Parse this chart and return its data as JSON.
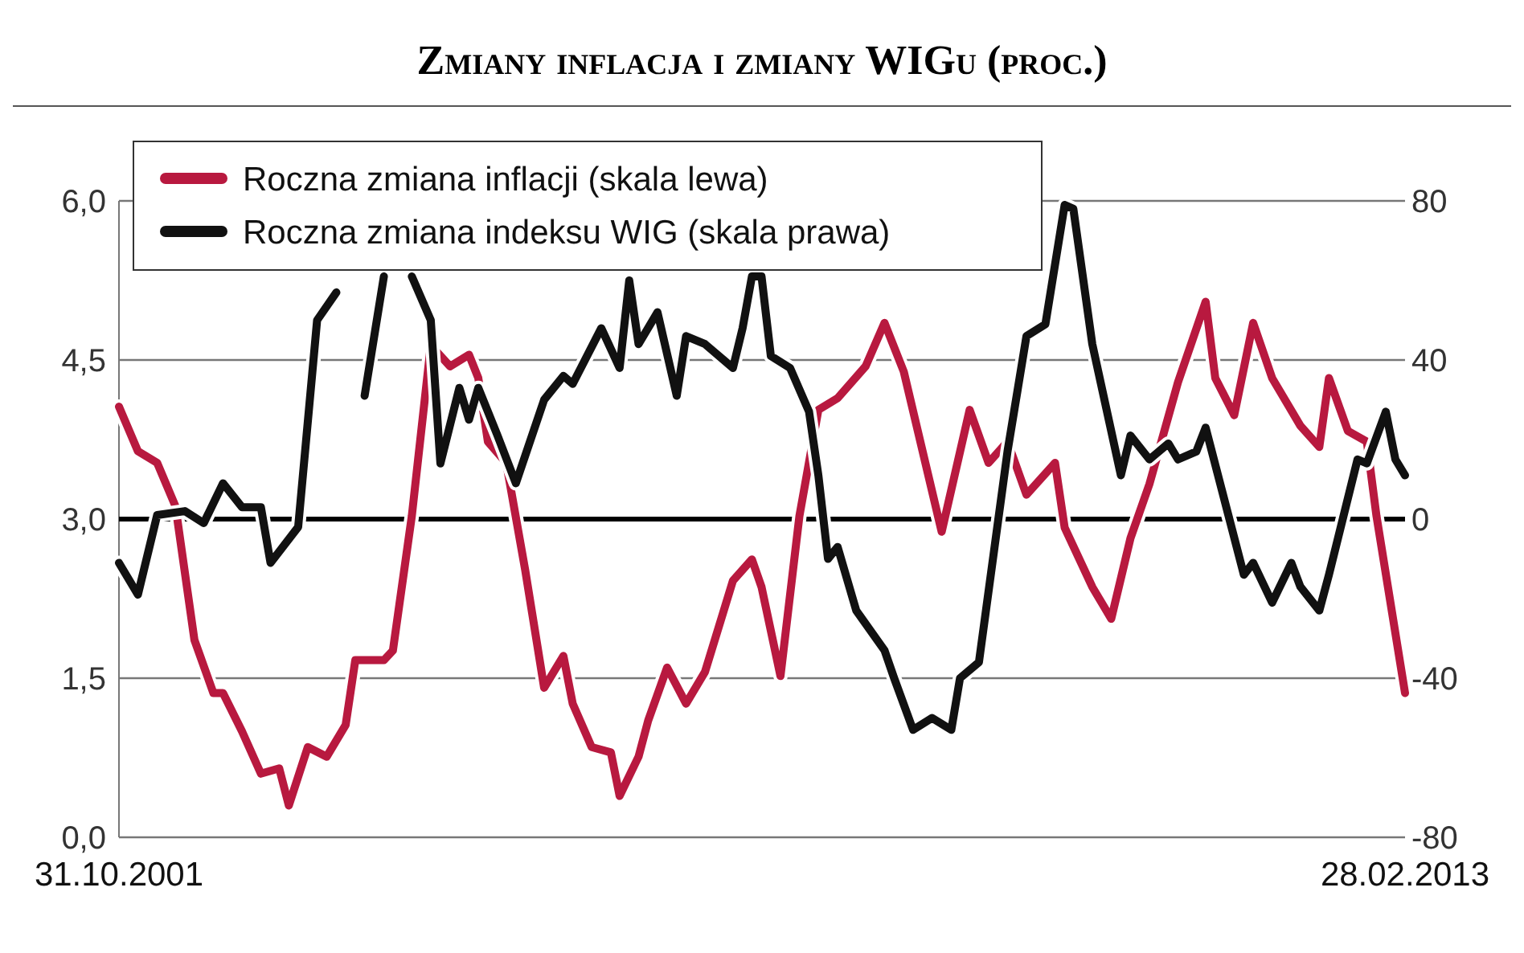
{
  "chart_data": {
    "type": "line",
    "title": "Zmiany inflacja i zmiany WIGu (proc.)",
    "xlim": [
      "2001-10",
      "2013-02"
    ],
    "xticks": [
      {
        "value": "2001-10",
        "label": "31.10.2001"
      },
      {
        "value": "2013-02",
        "label": "28.02.2013"
      }
    ],
    "ylim": [
      0,
      6
    ],
    "yticks": [
      {
        "value": 0,
        "label": "0,0"
      },
      {
        "value": 1.5,
        "label": "1,5"
      },
      {
        "value": 3,
        "label": "3,0"
      },
      {
        "value": 4.5,
        "label": "4,5"
      },
      {
        "value": 6,
        "label": "6,0"
      }
    ],
    "y2lim": [
      -80,
      80
    ],
    "y2ticks": [
      -80,
      -40,
      0,
      40,
      80
    ],
    "grid": "y",
    "legend": "top left",
    "line_style": "solid",
    "ref_lines": [
      {
        "axis": "y2",
        "value": 0,
        "color": "#000000"
      }
    ],
    "series": [
      {
        "name": "Roczna zmiana inflacji (skala lewa)",
        "color": "#b8193f",
        "x": [
          "2001-10",
          "2001-12",
          "2002-02",
          "2002-04",
          "2002-06",
          "2002-08",
          "2002-09",
          "2002-11",
          "2003-01",
          "2003-03",
          "2003-04",
          "2003-06",
          "2003-08",
          "2003-10",
          "2003-11",
          "2004-02",
          "2004-03",
          "2004-05",
          "2004-07",
          "2004-09",
          "2004-11",
          "2004-12",
          "2005-01",
          "2005-03",
          "2005-05",
          "2005-07",
          "2005-09",
          "2005-10",
          "2005-12",
          "2006-02",
          "2006-03",
          "2006-05",
          "2006-06",
          "2006-08",
          "2006-10",
          "2006-12",
          "2007-03",
          "2007-05",
          "2007-06",
          "2007-08",
          "2007-10",
          "2007-12",
          "2008-02",
          "2008-05",
          "2008-07",
          "2008-09",
          "2009-01",
          "2009-04",
          "2009-06",
          "2009-08",
          "2009-10",
          "2010-01",
          "2010-02",
          "2010-05",
          "2010-07",
          "2010-09",
          "2010-11",
          "2011-02",
          "2011-05",
          "2011-06",
          "2011-08",
          "2011-10",
          "2011-12",
          "2012-03",
          "2012-05",
          "2012-06",
          "2012-08",
          "2012-10",
          "2012-11",
          "2013-02"
        ],
        "values": [
          4.06,
          3.64,
          3.53,
          3.12,
          1.86,
          1.36,
          1.36,
          1.0,
          0.6,
          0.65,
          0.3,
          0.85,
          0.76,
          1.06,
          1.67,
          1.67,
          1.76,
          3.03,
          4.64,
          4.44,
          4.55,
          4.33,
          3.73,
          3.53,
          2.52,
          1.41,
          1.71,
          1.26,
          0.85,
          0.8,
          0.39,
          0.76,
          1.1,
          1.6,
          1.26,
          1.56,
          2.42,
          2.62,
          2.36,
          1.52,
          3.03,
          4.03,
          4.14,
          4.44,
          4.85,
          4.39,
          2.88,
          4.03,
          3.53,
          3.73,
          3.23,
          3.53,
          2.92,
          2.36,
          2.06,
          2.82,
          3.33,
          4.29,
          5.05,
          4.33,
          3.98,
          4.85,
          4.33,
          3.88,
          3.68,
          4.33,
          3.83,
          3.73,
          3.03,
          1.36
        ]
      },
      {
        "name": "Roczna zmiana indeksu WIG (skala prawa)",
        "color": "#111111",
        "axis": "y2",
        "x": [
          "2001-10",
          "2001-12",
          "2002-02",
          "2002-05",
          "2002-07",
          "2002-09",
          "2002-11",
          "2003-01",
          "2003-02",
          "2003-05",
          "2003-07",
          "2003-09",
          "2003-10",
          "2003-12",
          "2004-02",
          "2004-03",
          "2004-05",
          "2004-07",
          "2004-08",
          "2004-10",
          "2004-11",
          "2004-12",
          "2005-02",
          "2005-04",
          "2005-07",
          "2005-09",
          "2005-10",
          "2006-01",
          "2006-03",
          "2006-04",
          "2006-05",
          "2006-07",
          "2006-09",
          "2006-10",
          "2006-12",
          "2007-03",
          "2007-04",
          "2007-05",
          "2007-06",
          "2007-07",
          "2007-09",
          "2007-11",
          "2007-12",
          "2008-01",
          "2008-02",
          "2008-04",
          "2008-07",
          "2008-08",
          "2008-10",
          "2008-12",
          "2009-02",
          "2009-03",
          "2009-05",
          "2009-08",
          "2009-10",
          "2009-12",
          "2010-02",
          "2010-03",
          "2010-05",
          "2010-08",
          "2010-09",
          "2010-11",
          "2011-01",
          "2011-02",
          "2011-04",
          "2011-05",
          "2011-09",
          "2011-10",
          "2011-12",
          "2012-02",
          "2012-03",
          "2012-05",
          "2012-06",
          "2012-09",
          "2012-10",
          "2012-12",
          "2013-01",
          "2013-02"
        ],
        "values": [
          -11,
          -19,
          1,
          2,
          -1,
          9,
          3,
          3,
          -11,
          -2,
          50,
          57,
          null,
          31,
          61,
          null,
          61,
          50,
          14,
          33,
          25,
          33,
          21,
          9,
          30,
          36,
          34,
          48,
          38,
          60,
          44,
          52,
          31,
          46,
          44,
          38,
          48,
          61,
          61,
          41,
          38,
          27,
          11,
          -10,
          -7,
          -23,
          -33,
          -40,
          -53,
          -50,
          -53,
          -40,
          -36,
          17,
          46,
          49,
          79,
          78,
          44,
          11,
          21,
          15,
          19,
          15,
          17,
          23,
          -14,
          -11,
          -21,
          -11,
          -17,
          -23,
          -14,
          15,
          14,
          27,
          15,
          11
        ]
      }
    ]
  }
}
